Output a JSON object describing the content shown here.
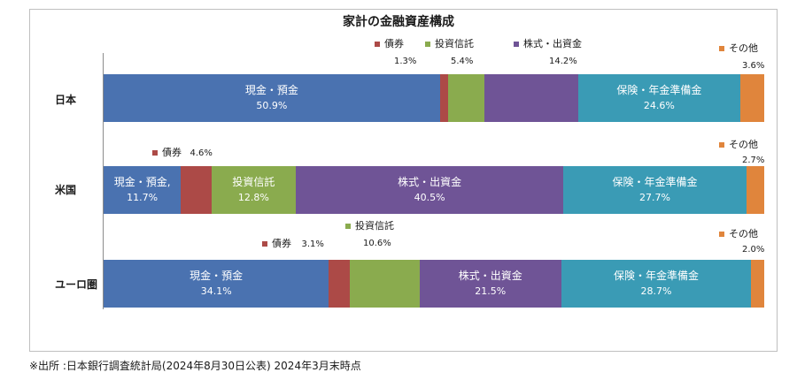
{
  "colors": {
    "cash": "#4a72b0",
    "bonds": "#ac4a47",
    "trusts": "#8aab4e",
    "stocks": "#6f5496",
    "insurance": "#3a9bb5",
    "other": "#e0853c"
  },
  "chart_data": {
    "type": "bar",
    "orientation": "horizontal",
    "stacked": true,
    "percent_stacked": true,
    "title": "家計の金融資産構成",
    "source": "※出所 :日本銀行調査統計局(2024年8月30日公表) 2024年3月末時点",
    "categories": [
      "日本",
      "米国",
      "ユーロ圏"
    ],
    "series": [
      {
        "key": "cash",
        "name": "現金・預金",
        "values": [
          50.9,
          11.7,
          34.1
        ]
      },
      {
        "key": "bonds",
        "name": "債券",
        "values": [
          1.3,
          4.6,
          3.1
        ]
      },
      {
        "key": "trusts",
        "name": "投資信託",
        "values": [
          5.4,
          12.8,
          10.6
        ]
      },
      {
        "key": "stocks",
        "name": "株式・出資金",
        "values": [
          14.2,
          40.5,
          21.5
        ]
      },
      {
        "key": "insurance",
        "name": "保険・年金準備金",
        "values": [
          24.6,
          27.7,
          28.7
        ]
      },
      {
        "key": "other",
        "name": "その他",
        "values": [
          3.6,
          2.7,
          2.0
        ]
      }
    ],
    "inside_labels": [
      [
        {
          "name": "現金・預金",
          "value": "50.9%"
        },
        null,
        null,
        null,
        {
          "name": "保険・年金準備金",
          "value": "24.6%"
        },
        null
      ],
      [
        {
          "name": "現金・預金,",
          "value": "11.7%"
        },
        null,
        {
          "name": "投資信託",
          "value": "12.8%"
        },
        {
          "name": "株式・出資金",
          "value": "40.5%"
        },
        {
          "name": "保険・年金準備金",
          "value": "27.7%"
        },
        null
      ],
      [
        {
          "name": "現金・預金",
          "value": "34.1%"
        },
        null,
        null,
        {
          "name": "株式・出資金",
          "value": "21.5%"
        },
        {
          "name": "保険・年金準備金",
          "value": "28.7%"
        },
        null
      ]
    ],
    "annotations": {
      "japan": {
        "bonds": {
          "name": "債券",
          "value": "1.3%"
        },
        "trusts": {
          "name": "投資信託",
          "value": "5.4%"
        },
        "stocks": {
          "name": "株式・出資金",
          "value": "14.2%"
        },
        "other": {
          "name": "その他",
          "value": "3.6%"
        }
      },
      "us": {
        "bonds": {
          "name": "債券",
          "value": "4.6%"
        },
        "other": {
          "name": "その他",
          "value": "2.7%"
        }
      },
      "euro": {
        "trusts": {
          "name": "投資信託",
          "value": "10.6%"
        },
        "bonds": {
          "name": "債券",
          "value": "3.1%"
        },
        "other": {
          "name": "その他",
          "value": "2.0%"
        }
      }
    }
  }
}
